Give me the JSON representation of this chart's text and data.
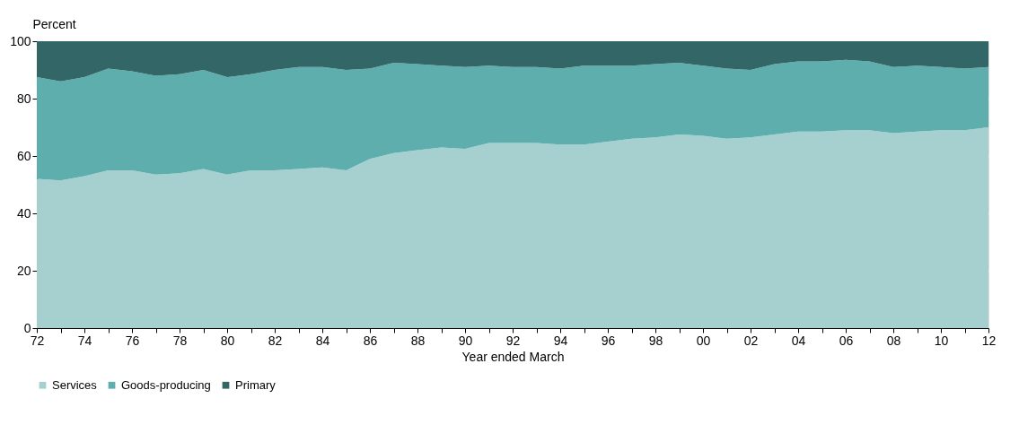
{
  "chart_data": {
    "type": "area",
    "stacked": true,
    "ylabel": "Percent",
    "xlabel": "Year ended March",
    "categories": [
      "72",
      null,
      "74",
      null,
      "76",
      null,
      "78",
      null,
      "80",
      null,
      "82",
      null,
      "84",
      null,
      "86",
      null,
      "88",
      null,
      "90",
      null,
      "92",
      null,
      "94",
      null,
      "96",
      null,
      "98",
      null,
      "00",
      null,
      "02",
      null,
      "04",
      null,
      "06",
      null,
      "08",
      null,
      "10",
      null,
      "12"
    ],
    "series": [
      {
        "name": "Services",
        "color": "#a6d0d0",
        "values": [
          52,
          51.5,
          53,
          55,
          55,
          53.5,
          54,
          55.5,
          53.5,
          55,
          55,
          55.5,
          56,
          55,
          59,
          61,
          62,
          63,
          62.5,
          64.5,
          64.5,
          64.5,
          64,
          64,
          65,
          66,
          66.5,
          67.5,
          67,
          66,
          66.5,
          67.5,
          68.5,
          68.5,
          69,
          69,
          68,
          68.5,
          69,
          69,
          70
        ]
      },
      {
        "name": "Goods-producing",
        "color": "#5eaeae",
        "values": [
          35.5,
          34.5,
          34.5,
          35.5,
          34.5,
          34.5,
          34.5,
          34.5,
          34,
          33.5,
          35,
          35.5,
          35,
          35,
          31.5,
          31.5,
          30,
          28.5,
          28.5,
          27,
          26.5,
          26.5,
          26.5,
          27.5,
          26.5,
          25.5,
          25.5,
          25,
          24.5,
          24.5,
          23.5,
          24.5,
          24.5,
          24.5,
          24.5,
          24,
          23,
          23,
          22,
          21.5,
          21
        ]
      },
      {
        "name": "Primary",
        "color": "#336666",
        "values": [
          12.5,
          14,
          12.5,
          9.5,
          10.5,
          12,
          11.5,
          10,
          12.5,
          11.5,
          10,
          9,
          9,
          10,
          9.5,
          7.5,
          8,
          8.5,
          9,
          8.5,
          9,
          9,
          9.5,
          8.5,
          8.5,
          8.5,
          8,
          7.5,
          8.5,
          9.5,
          10,
          8,
          7,
          7,
          6.5,
          7,
          9,
          8.5,
          9,
          9.5,
          9
        ]
      }
    ],
    "ylim": [
      0,
      100
    ],
    "yticks": [
      0,
      20,
      40,
      60,
      80,
      100
    ],
    "grid": "y",
    "legend": "bottom"
  }
}
